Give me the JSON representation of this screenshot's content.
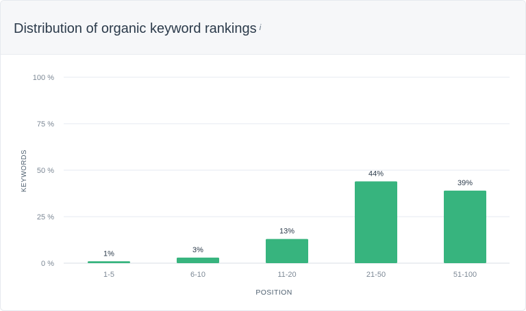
{
  "colors": {
    "bar": "#37b47e",
    "grid": "#e6eaf0",
    "axis_text": "#7b8794",
    "value_text": "#2b3a4a",
    "axis_title": "#4f6070"
  },
  "header": {
    "title": "Distribution of organic keyword rankings",
    "info_icon": "i"
  },
  "chart_data": {
    "type": "bar",
    "title": "Distribution of organic keyword rankings",
    "xlabel": "POSITION",
    "ylabel": "KEYWORDS",
    "categories": [
      "1-5",
      "6-10",
      "11-20",
      "21-50",
      "51-100"
    ],
    "values": [
      1,
      3,
      13,
      44,
      39
    ],
    "value_labels": [
      "1%",
      "3%",
      "13%",
      "44%",
      "39%"
    ],
    "ylim": [
      0,
      100
    ],
    "yticks": [
      0,
      25,
      50,
      75,
      100
    ],
    "ytick_labels": [
      "0 %",
      "25 %",
      "50 %",
      "75 %",
      "100 %"
    ],
    "grid": true,
    "legend": "none"
  }
}
